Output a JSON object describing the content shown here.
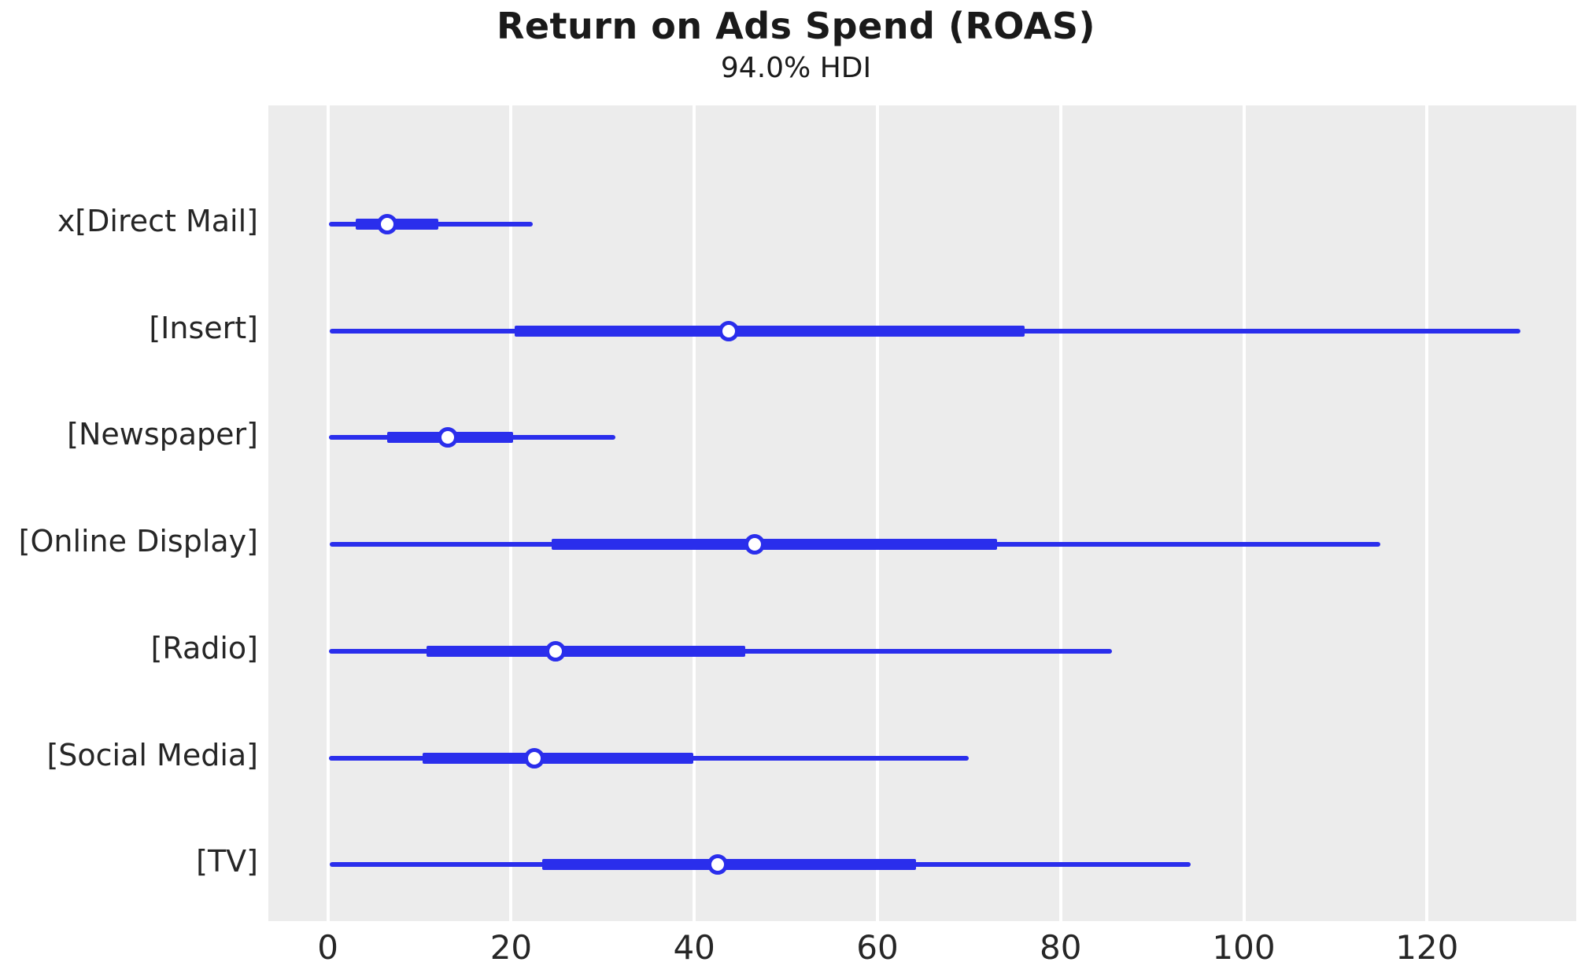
{
  "title": "Return on Ads Spend (ROAS)",
  "subtitle": "94.0% HDI",
  "chart_data": {
    "type": "forest",
    "title": "Return on Ads Spend (ROAS)",
    "subtitle": "94.0% HDI",
    "hdi_probability": "94.0%",
    "xlabel": "",
    "ylabel": "",
    "xlim": [
      -6.5,
      136.3
    ],
    "x_ticks": [
      0,
      20,
      40,
      60,
      80,
      100,
      120
    ],
    "grid": "vertical white gridlines on gray panel, no axis spines",
    "legend": "none",
    "colors": {
      "line": "#2a2eec",
      "marker_fill": "#ffffff",
      "plot_background": "#ececec",
      "figure_background": "#ffffff",
      "text": "#262626"
    },
    "rows": [
      {
        "label": "x[Direct Mail]",
        "hdi": [
          0.1,
          22.4
        ],
        "iqr": [
          3.0,
          12.1
        ],
        "median": 6.5
      },
      {
        "label": "[Insert]",
        "hdi": [
          0.2,
          130.2
        ],
        "iqr": [
          20.4,
          76.1
        ],
        "median": 43.8
      },
      {
        "label": "[Newspaper]",
        "hdi": [
          0.1,
          31.4
        ],
        "iqr": [
          6.5,
          20.2
        ],
        "median": 13.1
      },
      {
        "label": "[Online Display]",
        "hdi": [
          0.2,
          114.9
        ],
        "iqr": [
          24.4,
          73.1
        ],
        "median": 46.6
      },
      {
        "label": "[Radio]",
        "hdi": [
          0.1,
          85.6
        ],
        "iqr": [
          10.8,
          45.6
        ],
        "median": 24.9
      },
      {
        "label": "[Social Media]",
        "hdi": [
          0.1,
          70.0
        ],
        "iqr": [
          10.3,
          39.9
        ],
        "median": 22.5
      },
      {
        "label": "[TV]",
        "hdi": [
          0.2,
          94.2
        ],
        "iqr": [
          23.4,
          64.2
        ],
        "median": 42.6
      }
    ]
  }
}
